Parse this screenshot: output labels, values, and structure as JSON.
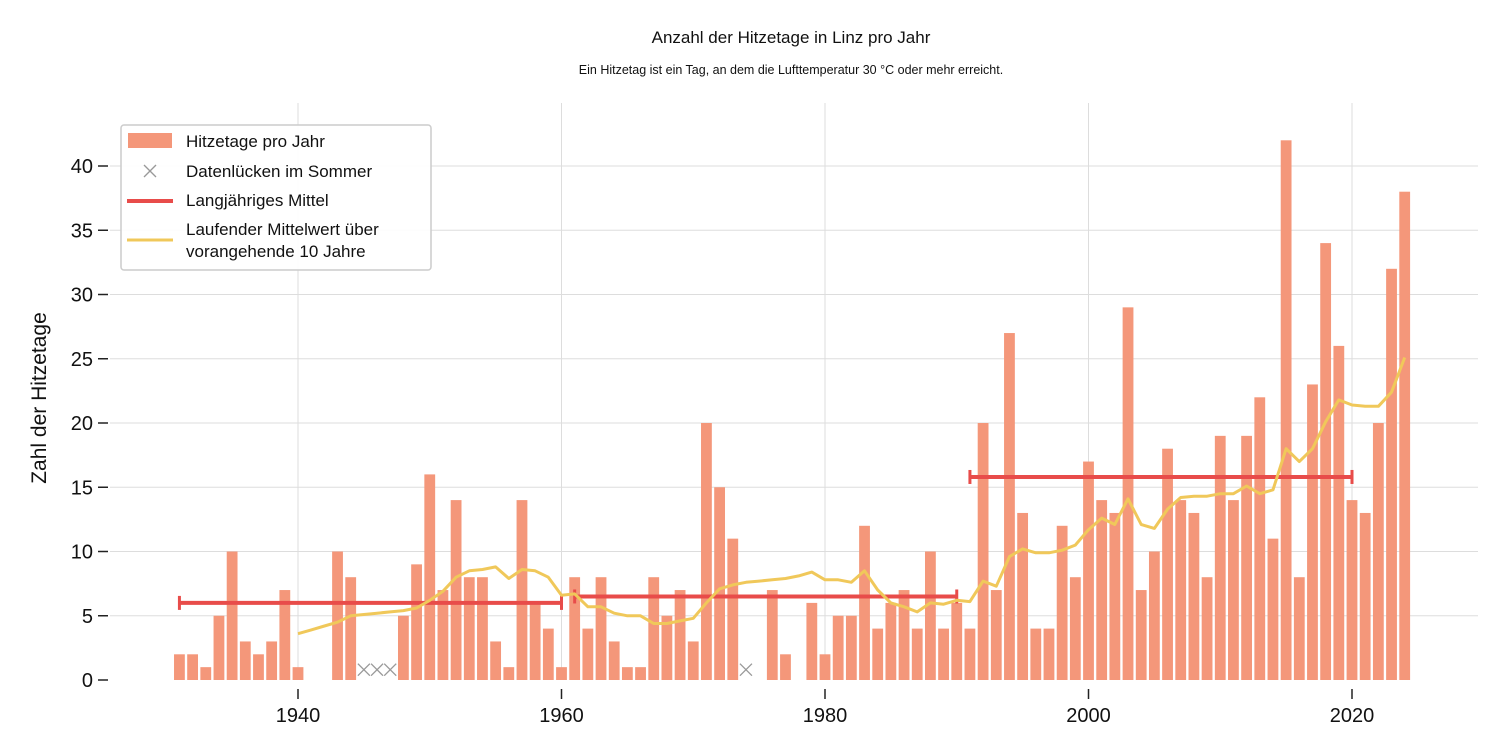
{
  "chart_data": {
    "type": "bar",
    "title": "Anzahl der Hitzetage in Linz pro Jahr",
    "subtitle": "Ein Hitzetag ist ein Tag, an dem die Lufttemperatur 30 °C oder mehr erreicht.",
    "xlabel": "",
    "ylabel": "Zahl der Hitzetage",
    "xlim": [
      1926,
      2027
    ],
    "ylim": [
      0,
      44
    ],
    "x_ticks": [
      1940,
      1960,
      1980,
      2000,
      2020
    ],
    "y_ticks": [
      0,
      5,
      10,
      15,
      20,
      25,
      30,
      35,
      40
    ],
    "grid": true,
    "legend_position": "top-left",
    "colors": {
      "bars": "#f4977a",
      "gaps": "#999999",
      "mean": "#e84c4a",
      "rolling": "#f0c85a",
      "grid": "#dddddd"
    },
    "series": [
      {
        "name": "Hitzetage pro Jahr",
        "type": "bar",
        "x": [
          1931,
          1932,
          1933,
          1934,
          1935,
          1936,
          1937,
          1938,
          1939,
          1940,
          1941,
          1942,
          1943,
          1944,
          1948,
          1949,
          1950,
          1951,
          1952,
          1953,
          1954,
          1955,
          1956,
          1957,
          1958,
          1959,
          1960,
          1961,
          1962,
          1963,
          1964,
          1965,
          1966,
          1967,
          1968,
          1969,
          1970,
          1971,
          1972,
          1973,
          1974,
          1976,
          1977,
          1978,
          1979,
          1980,
          1981,
          1982,
          1983,
          1984,
          1985,
          1986,
          1987,
          1988,
          1989,
          1990,
          1991,
          1992,
          1993,
          1994,
          1995,
          1996,
          1997,
          1998,
          1999,
          2000,
          2001,
          2002,
          2003,
          2004,
          2005,
          2006,
          2007,
          2008,
          2009,
          2010,
          2011,
          2012,
          2013,
          2014,
          2015,
          2016,
          2017,
          2018,
          2019,
          2020,
          2021,
          2022,
          2023,
          2024
        ],
        "values": [
          2,
          2,
          1,
          5,
          10,
          3,
          2,
          3,
          7,
          1,
          0,
          0,
          10,
          8,
          5,
          9,
          16,
          7,
          14,
          8,
          8,
          3,
          1,
          14,
          6,
          4,
          1,
          8,
          4,
          8,
          3,
          1,
          1,
          8,
          5,
          7,
          3,
          20,
          15,
          11,
          0,
          7,
          2,
          0,
          6,
          2,
          5,
          5,
          12,
          4,
          6,
          7,
          4,
          10,
          4,
          6,
          4,
          20,
          7,
          27,
          13,
          4,
          4,
          12,
          8,
          17,
          14,
          13,
          29,
          7,
          10,
          18,
          14,
          13,
          8,
          19,
          14,
          19,
          22,
          11,
          42,
          8,
          23,
          34,
          26,
          14,
          13,
          20,
          32,
          38
        ]
      },
      {
        "name": "Datenlücken im Sommer",
        "type": "scatter",
        "x": [
          1945,
          1946,
          1947,
          1974
        ],
        "values": [
          0.8,
          0.8,
          0.8,
          0.8
        ]
      },
      {
        "name": "Langjähriges Mittel",
        "type": "segments",
        "segments": [
          {
            "x_start": 1931,
            "x_end": 1960,
            "value": 6.0
          },
          {
            "x_start": 1961,
            "x_end": 1990,
            "value": 6.5
          },
          {
            "x_start": 1991,
            "x_end": 2020,
            "value": 15.8
          }
        ]
      },
      {
        "name": "Laufender Mittelwert über vorangehende 10 Jahre",
        "legend_lines": [
          "Laufender Mittelwert über",
          "vorangehende 10 Jahre"
        ],
        "type": "line",
        "x": [
          1940,
          1941,
          1942,
          1943,
          1944,
          1945,
          1946,
          1947,
          1948,
          1949,
          1950,
          1951,
          1952,
          1953,
          1954,
          1955,
          1956,
          1957,
          1958,
          1959,
          1960,
          1961,
          1962,
          1963,
          1964,
          1965,
          1966,
          1967,
          1968,
          1969,
          1970,
          1971,
          1972,
          1973,
          1974,
          1975,
          1976,
          1977,
          1978,
          1979,
          1980,
          1981,
          1982,
          1983,
          1984,
          1985,
          1986,
          1987,
          1988,
          1989,
          1990,
          1991,
          1992,
          1993,
          1994,
          1995,
          1996,
          1997,
          1998,
          1999,
          2000,
          2001,
          2002,
          2003,
          2004,
          2005,
          2006,
          2007,
          2008,
          2009,
          2010,
          2011,
          2012,
          2013,
          2014,
          2015,
          2016,
          2017,
          2018,
          2019,
          2020,
          2021,
          2022,
          2023,
          2024
        ],
        "values": [
          3.6,
          3.9,
          4.2,
          4.5,
          5.0,
          5.1,
          5.2,
          5.3,
          5.4,
          5.6,
          6.2,
          6.9,
          8.0,
          8.5,
          8.6,
          8.8,
          7.9,
          8.6,
          8.5,
          8.0,
          6.6,
          6.7,
          5.7,
          5.7,
          5.2,
          5.0,
          5.0,
          4.4,
          4.4,
          4.6,
          4.8,
          6.0,
          7.1,
          7.4,
          7.6,
          7.7,
          7.8,
          7.9,
          8.1,
          8.4,
          7.8,
          7.8,
          7.6,
          8.5,
          7.0,
          6.0,
          5.7,
          5.3,
          6.0,
          5.9,
          6.2,
          6.1,
          7.7,
          7.3,
          9.6,
          10.2,
          9.9,
          9.9,
          10.1,
          10.5,
          11.7,
          12.6,
          12.1,
          14.1,
          12.1,
          11.8,
          13.3,
          14.2,
          14.3,
          14.3,
          14.5,
          14.5,
          15.1,
          14.5,
          14.8,
          18.0,
          17.0,
          18.0,
          20.1,
          21.8,
          21.4,
          21.3,
          21.3,
          22.4,
          25.1
        ]
      }
    ]
  }
}
